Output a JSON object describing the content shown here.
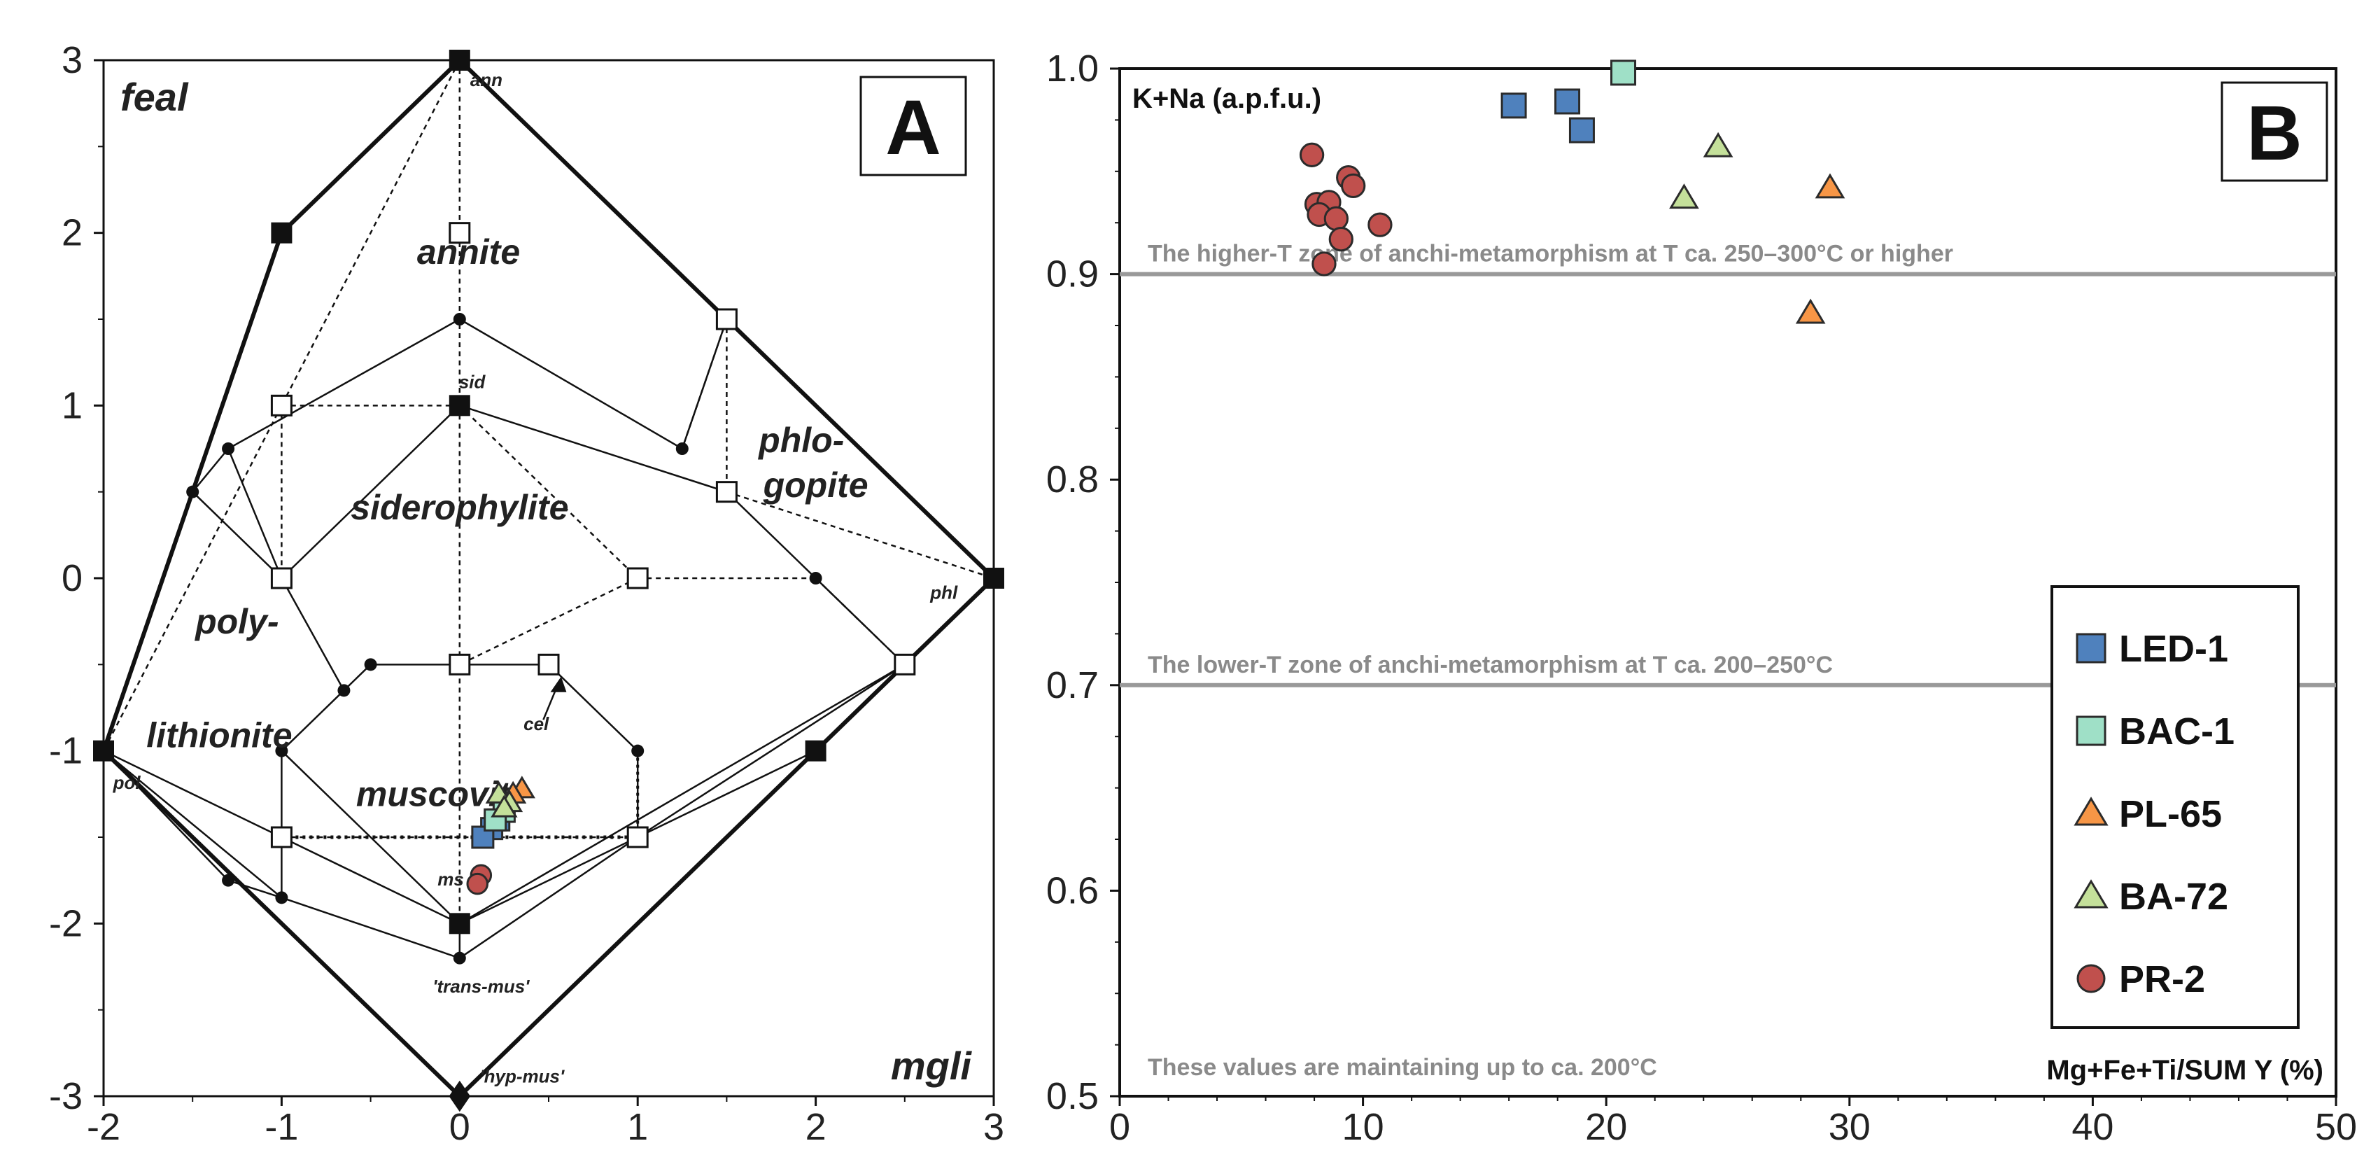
{
  "chart_data": [
    {
      "panel": "A",
      "type": "scatter",
      "title": "A",
      "xlim": [
        -2,
        3
      ],
      "ylim": [
        -3,
        3
      ],
      "xticks": [
        "-2",
        "-1",
        "0",
        "1",
        "2",
        "3"
      ],
      "yticks": [
        "-3",
        "-2",
        "-1",
        "0",
        "1",
        "2",
        "3"
      ],
      "corner_labels": [
        "feal",
        "mgli"
      ],
      "region_labels": [
        {
          "text": "annite",
          "x": 0.05,
          "y": 1.82
        },
        {
          "text": "siderophylite",
          "x": 0.0,
          "y": 0.34
        },
        {
          "text": "phlo-",
          "x": 1.92,
          "y": 0.73
        },
        {
          "text": "gopite",
          "x": 2.0,
          "y": 0.47
        },
        {
          "text": "poly-",
          "x": -1.25,
          "y": -0.32
        },
        {
          "text": "lithionite",
          "x": -1.35,
          "y": -0.98
        },
        {
          "text": "muscovit",
          "x": -0.15,
          "y": -1.32
        }
      ],
      "endmember_labels": [
        {
          "text": "ann",
          "x": 0.15,
          "y": 2.85
        },
        {
          "text": "sid",
          "x": 0.07,
          "y": 1.1
        },
        {
          "text": "phl",
          "x": 2.72,
          "y": -0.12
        },
        {
          "text": "pol",
          "x": -1.87,
          "y": -1.22
        },
        {
          "text": "cel",
          "x": 0.43,
          "y": -0.88
        },
        {
          "text": "ms",
          "x": -0.05,
          "y": -1.78
        },
        {
          "text": "'trans-mus'",
          "x": 0.12,
          "y": -2.4
        },
        {
          "text": "'hyp-mus'",
          "x": 0.35,
          "y": -2.92
        }
      ],
      "filled_square_endmembers": [
        [
          0,
          3
        ],
        [
          -1,
          2
        ],
        [
          0,
          1
        ],
        [
          3,
          0
        ],
        [
          -2,
          -1
        ],
        [
          2,
          -1
        ],
        [
          0,
          -2
        ]
      ],
      "open_square_endmembers": [
        [
          0,
          2
        ],
        [
          1.5,
          1.5
        ],
        [
          -1,
          1
        ],
        [
          1.5,
          0.5
        ],
        [
          -1,
          0
        ],
        [
          1,
          0
        ],
        [
          0,
          -0.5
        ],
        [
          0.5,
          -0.5
        ],
        [
          2.5,
          -0.5
        ],
        [
          -1,
          -1.5
        ],
        [
          1,
          -1.5
        ]
      ],
      "dot_nodes": [
        [
          0,
          1.5
        ],
        [
          -1.3,
          0.75
        ],
        [
          -1.5,
          0.5
        ],
        [
          1.25,
          0.75
        ],
        [
          2,
          0
        ],
        [
          -0.5,
          -0.5
        ],
        [
          -0.65,
          -0.65
        ],
        [
          -1,
          -1
        ],
        [
          1,
          -1
        ],
        [
          -1.3,
          -1.75
        ],
        [
          -1,
          -1.85
        ],
        [
          0,
          -2.2
        ]
      ],
      "diamond_node": [
        0,
        -3
      ],
      "series": [
        {
          "name": "LED-1",
          "color": "#4f81bd",
          "marker": "square",
          "points": [
            [
              0.22,
              -1.4
            ],
            [
              0.18,
              -1.45
            ],
            [
              0.13,
              -1.5
            ]
          ]
        },
        {
          "name": "BAC-1",
          "color": "#9fe0c7",
          "marker": "square",
          "points": [
            [
              0.25,
              -1.35
            ],
            [
              0.2,
              -1.4
            ]
          ]
        },
        {
          "name": "PL-65",
          "color": "#f79646",
          "marker": "triangle",
          "points": [
            [
              0.35,
              -1.22
            ],
            [
              0.3,
              -1.25
            ]
          ]
        },
        {
          "name": "BA-72",
          "color": "#c4e09a",
          "marker": "triangle",
          "points": [
            [
              0.22,
              -1.25
            ],
            [
              0.28,
              -1.3
            ],
            [
              0.25,
              -1.33
            ]
          ]
        },
        {
          "name": "PR-2",
          "color": "#c0504d",
          "marker": "circle",
          "points": [
            [
              0.12,
              -1.72
            ],
            [
              0.1,
              -1.77
            ]
          ]
        }
      ]
    },
    {
      "panel": "B",
      "type": "scatter",
      "title": "B",
      "xlabel": "Mg+Fe+Ti/SUM Y (%)",
      "ylabel": "K+Na (a.p.f.u.)",
      "xlim": [
        0,
        50
      ],
      "ylim": [
        0.5,
        1.0
      ],
      "xticks": [
        "0",
        "10",
        "20",
        "30",
        "40",
        "50"
      ],
      "yticks": [
        "0.5",
        "0.6",
        "0.7",
        "0.8",
        "0.9",
        "1.0"
      ],
      "reference_lines": [
        {
          "y": 0.9,
          "label": "The higher-T zone of anchi-metamorphism at T ca. 250–300°C or higher"
        },
        {
          "y": 0.7,
          "label": "The lower-T zone of anchi-metamorphism at T ca. 200–250°C"
        }
      ],
      "bottom_note": "These values are maintaining up to ca. 200°C",
      "series": [
        {
          "name": "LED-1",
          "color": "#4f81bd",
          "marker": "square",
          "points": [
            [
              16.2,
              0.982
            ],
            [
              18.4,
              0.984
            ],
            [
              19.0,
              0.97
            ]
          ]
        },
        {
          "name": "BAC-1",
          "color": "#9fe0c7",
          "marker": "square",
          "points": [
            [
              20.7,
              0.998
            ]
          ]
        },
        {
          "name": "PL-65",
          "color": "#f79646",
          "marker": "triangle",
          "points": [
            [
              29.2,
              0.942
            ],
            [
              28.4,
              0.881
            ]
          ]
        },
        {
          "name": "BA-72",
          "color": "#c4e09a",
          "marker": "triangle",
          "points": [
            [
              24.6,
              0.962
            ],
            [
              23.2,
              0.937
            ]
          ]
        },
        {
          "name": "PR-2",
          "color": "#c0504d",
          "marker": "circle",
          "points": [
            [
              7.9,
              0.958
            ],
            [
              9.4,
              0.947
            ],
            [
              9.6,
              0.943
            ],
            [
              8.1,
              0.934
            ],
            [
              8.6,
              0.935
            ],
            [
              8.2,
              0.929
            ],
            [
              8.9,
              0.927
            ],
            [
              10.7,
              0.924
            ],
            [
              9.1,
              0.917
            ],
            [
              8.4,
              0.905
            ]
          ]
        }
      ],
      "legend": {
        "position": "right",
        "entries": [
          "LED-1",
          "BAC-1",
          "PL-65",
          "BA-72",
          "PR-2"
        ]
      }
    }
  ]
}
